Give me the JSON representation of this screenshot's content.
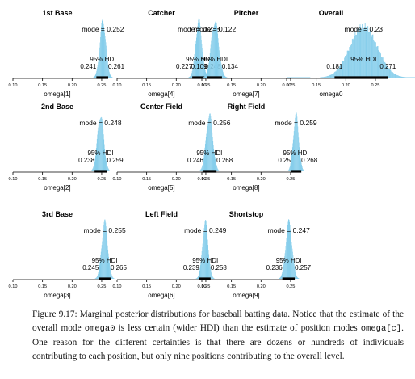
{
  "chart_data": [
    {
      "type": "histogram",
      "title": "1st Base",
      "xlabel": "omega[1]",
      "mode_label": "mode = 0.252",
      "mode": 0.252,
      "hdi_label": "95% HDI",
      "hdi": [
        0.241,
        0.261
      ],
      "hdi_text": [
        "0.241",
        "0.261"
      ],
      "xticks": [
        "0.10",
        "0.15",
        "0.20",
        "0.25"
      ],
      "xlim": [
        0.1,
        0.25
      ]
    },
    {
      "type": "histogram",
      "title": "Catcher",
      "xlabel": "omega[4]",
      "mode_label": "mode = 0.238",
      "mode": 0.238,
      "hdi_label": "95% HDI",
      "hdi": [
        0.227,
        0.248
      ],
      "hdi_text": [
        "0.227",
        "0.248"
      ],
      "xticks": [
        "0.10",
        "0.15",
        "0.20",
        "0.25"
      ],
      "xlim": [
        0.1,
        0.25
      ]
    },
    {
      "type": "histogram",
      "title": "Pitcher",
      "xlabel": "omega[7]",
      "mode_label": "mode = 0.122",
      "mode": 0.122,
      "hdi_label": "95% HDI",
      "hdi": [
        0.109,
        0.134
      ],
      "hdi_text": [
        "0.109",
        "0.134"
      ],
      "xticks": [
        "0.10",
        "0.15",
        "0.20",
        "0.25"
      ],
      "xlim": [
        0.1,
        0.25
      ]
    },
    {
      "type": "histogram",
      "title": "Overall",
      "xlabel": "omega0",
      "mode_label": "mode = 0.23",
      "mode": 0.23,
      "hdi_label": "95% HDI",
      "hdi": [
        0.181,
        0.271
      ],
      "hdi_text": [
        "0.181",
        "0.271"
      ],
      "xticks": [
        "0.10",
        "0.15",
        "0.20",
        "0.25"
      ],
      "xlim": [
        0.1,
        0.25
      ]
    },
    {
      "type": "histogram",
      "title": "2nd Base",
      "xlabel": "omega[2]",
      "mode_label": "mode = 0.248",
      "mode": 0.248,
      "hdi_label": "95% HDI",
      "hdi": [
        0.238,
        0.259
      ],
      "hdi_text": [
        "0.238",
        "0.259"
      ],
      "xticks": [
        "0.10",
        "0.15",
        "0.20",
        "0.25"
      ],
      "xlim": [
        0.1,
        0.25
      ]
    },
    {
      "type": "histogram",
      "title": "Center Field",
      "xlabel": "omega[5]",
      "mode_label": "mode = 0.256",
      "mode": 0.256,
      "hdi_label": "95% HDI",
      "hdi": [
        0.246,
        0.268
      ],
      "hdi_text": [
        "0.246",
        "0.268"
      ],
      "xticks": [
        "0.10",
        "0.15",
        "0.20",
        "0.25"
      ],
      "xlim": [
        0.1,
        0.25
      ]
    },
    {
      "type": "histogram",
      "title": "Right Field",
      "xlabel": "omega[8]",
      "mode_label": "mode = 0.259",
      "mode": 0.259,
      "hdi_label": "95% HDI",
      "hdi": [
        0.25,
        0.268
      ],
      "hdi_text": [
        "0.25",
        "0.268"
      ],
      "xticks": [
        "0.10",
        "0.15",
        "0.20",
        "0.25"
      ],
      "xlim": [
        0.1,
        0.25
      ]
    },
    {
      "type": "histogram",
      "title": "3rd Base",
      "xlabel": "omega[3]",
      "mode_label": "mode = 0.255",
      "mode": 0.255,
      "hdi_label": "95% HDI",
      "hdi": [
        0.245,
        0.265
      ],
      "hdi_text": [
        "0.245",
        "0.265"
      ],
      "xticks": [
        "0.10",
        "0.15",
        "0.20",
        "0.25"
      ],
      "xlim": [
        0.1,
        0.25
      ]
    },
    {
      "type": "histogram",
      "title": "Left Field",
      "xlabel": "omega[6]",
      "mode_label": "mode = 0.249",
      "mode": 0.249,
      "hdi_label": "95% HDI",
      "hdi": [
        0.239,
        0.258
      ],
      "hdi_text": [
        "0.239",
        "0.258"
      ],
      "xticks": [
        "0.10",
        "0.15",
        "0.20",
        "0.25"
      ],
      "xlim": [
        0.1,
        0.25
      ]
    },
    {
      "type": "histogram",
      "title": "Shortstop",
      "xlabel": "omega[9]",
      "mode_label": "mode = 0.247",
      "mode": 0.247,
      "hdi_label": "95% HDI",
      "hdi": [
        0.236,
        0.257
      ],
      "hdi_text": [
        "0.236",
        "0.257"
      ],
      "xticks": [
        "0.10",
        "0.15",
        "0.20",
        "0.25"
      ],
      "xlim": [
        0.1,
        0.25
      ]
    }
  ],
  "colors": {
    "bars": "#87ceeb",
    "hdi_bar": "#000000",
    "axis": "#000000"
  },
  "caption": {
    "label": "Figure 9.17:",
    "part1": " Marginal posterior distributions for baseball batting data. Notice that the estimate of the overall mode ",
    "code1": "omega0",
    "part2": " is less certain (wider HDI) than the estimate of position modes ",
    "code2": "omega[c]",
    "part3": ". One reason for the different certainties is that there are dozens or hundreds of individuals contributing to each position, but only nine positions contributing to the overall level."
  }
}
